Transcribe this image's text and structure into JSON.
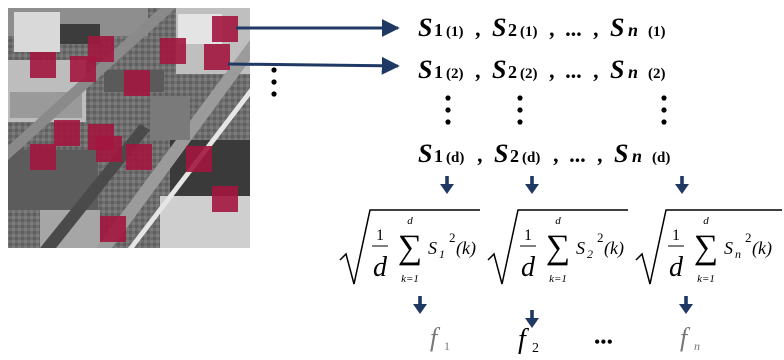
{
  "colors": {
    "patch": "#a3163f",
    "arrow": "#1f3864",
    "text": "#000000",
    "feature_gray": "#777777"
  },
  "image": {
    "description_icon": "aerial-photo",
    "patch_count": 15
  },
  "sequences": {
    "rows": [
      {
        "label": "row-1",
        "s1_idx": "(1)",
        "s2_idx": "(1)",
        "sn_idx": "(1)"
      },
      {
        "label": "row-2",
        "s1_idx": "(2)",
        "s2_idx": "(2)",
        "sn_idx": "(2)"
      },
      {
        "label": "row-d",
        "s1_idx": "(d)",
        "s2_idx": "(d)",
        "sn_idx": "(d)"
      }
    ],
    "s1_sub": "1",
    "s2_sub": "2",
    "sn_sub": "n",
    "separator": ",",
    "ellipsis": "...",
    "symbol": "S"
  },
  "formula": {
    "frac_num": "1",
    "frac_den": "d",
    "sum_top": "d",
    "sum_bottom": "k=1",
    "exponent": "2",
    "arg": "(k)",
    "subs": [
      "1",
      "2",
      "n"
    ]
  },
  "features": {
    "f1_sub": "1",
    "f2_sub": "2",
    "fn_sub": "n",
    "symbol": "f",
    "between_dots": "•••"
  }
}
